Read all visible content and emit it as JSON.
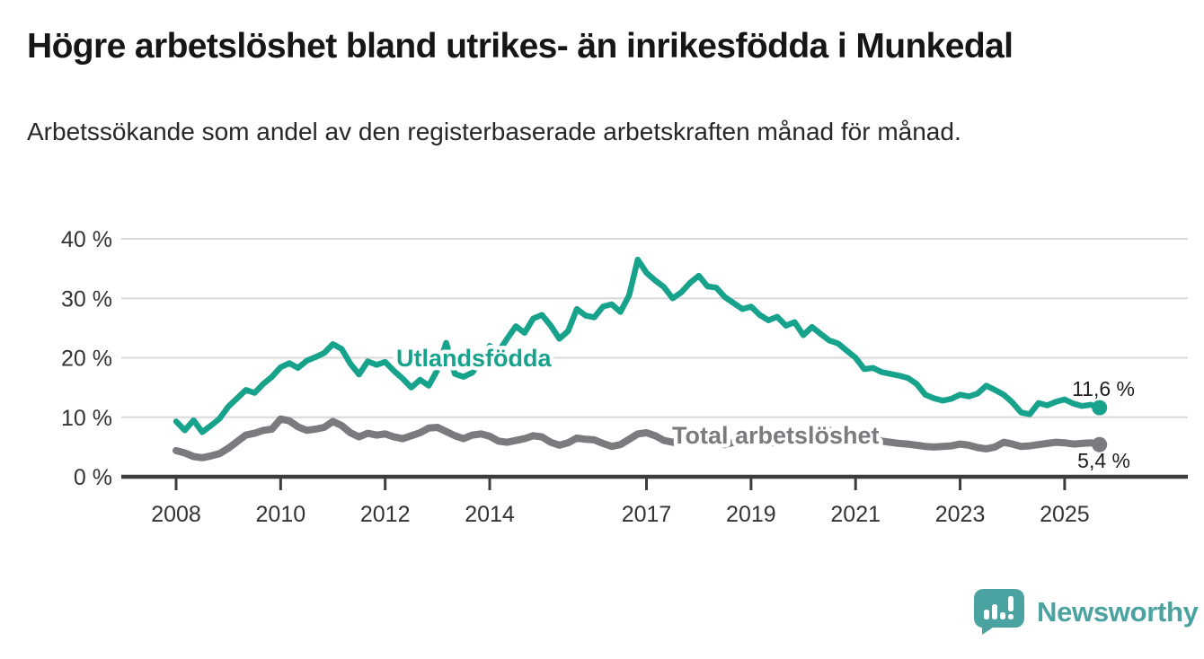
{
  "title": "Högre arbetslöshet bland utrikes- än inrikesfödda i Munkedal",
  "subtitle": "Arbetssökande som andel av den registerbaserade arbetskraften månad för månad.",
  "branding": {
    "logo_text": "Newsworthy",
    "logo_color": "#4aa3a0"
  },
  "colors": {
    "accent_teal": "#17a28c",
    "gray_line": "#7b7b7f",
    "axis": "#3c3c3c",
    "grid": "#d9d9d9",
    "tick_text": "#333333",
    "title_text": "#161616"
  },
  "chart_data": {
    "type": "line",
    "unit": "%",
    "grid": true,
    "legend_position": "inline-labels",
    "ylim": [
      0,
      40
    ],
    "x_start_year": 2008,
    "x_end_year": 2025.667,
    "x_step_years": 0.16667,
    "y_ticks": [
      {
        "value": 0,
        "label": "0 %"
      },
      {
        "value": 10,
        "label": "10 %"
      },
      {
        "value": 20,
        "label": "20 %"
      },
      {
        "value": 30,
        "label": "30 %"
      },
      {
        "value": 40,
        "label": "40 %"
      }
    ],
    "x_ticks": [
      {
        "year": 2008,
        "label": "2008"
      },
      {
        "year": 2010,
        "label": "2010"
      },
      {
        "year": 2012,
        "label": "2012"
      },
      {
        "year": 2014,
        "label": "2014"
      },
      {
        "year": 2017,
        "label": "2017"
      },
      {
        "year": 2019,
        "label": "2019"
      },
      {
        "year": 2021,
        "label": "2021"
      },
      {
        "year": 2023,
        "label": "2023"
      },
      {
        "year": 2025,
        "label": "2025"
      }
    ],
    "series": [
      {
        "name": "Utlandsfödda",
        "color": "#17a28c",
        "end_value": 11.6,
        "end_label": "11,6 %",
        "values": [
          9.3,
          7.8,
          9.5,
          7.5,
          8.6,
          9.8,
          11.8,
          13.2,
          14.6,
          14.1,
          15.6,
          16.8,
          18.4,
          19.1,
          18.3,
          19.5,
          20.1,
          20.8,
          22.3,
          21.5,
          19.0,
          17.2,
          19.4,
          18.8,
          19.3,
          17.8,
          16.5,
          15.0,
          16.3,
          15.3,
          18.0,
          22.5,
          17.3,
          16.8,
          17.5,
          19.5,
          22.0,
          21.0,
          23.2,
          25.3,
          24.2,
          26.6,
          27.2,
          25.4,
          23.2,
          24.5,
          28.2,
          27.1,
          26.8,
          28.6,
          29.0,
          27.7,
          30.5,
          36.5,
          34.3,
          33.0,
          31.9,
          30.0,
          31.0,
          32.6,
          33.8,
          32.0,
          31.8,
          30.2,
          29.2,
          28.2,
          28.6,
          27.2,
          26.3,
          26.9,
          25.4,
          26.0,
          23.8,
          25.2,
          24.0,
          22.9,
          22.4,
          21.2,
          20.0,
          18.1,
          18.3,
          17.6,
          17.3,
          17.0,
          16.6,
          15.6,
          13.8,
          13.2,
          12.8,
          13.1,
          13.8,
          13.5,
          14.0,
          15.3,
          14.6,
          13.8,
          12.5,
          10.8,
          10.5,
          12.4,
          12.0,
          12.6,
          13.0,
          12.3,
          11.9,
          12.1,
          11.6
        ]
      },
      {
        "name": "Total arbetslöshet",
        "color": "#7b7b7f",
        "end_value": 5.4,
        "end_label": "5,4 %",
        "values": [
          4.4,
          4.0,
          3.4,
          3.2,
          3.5,
          3.9,
          4.8,
          5.9,
          7.0,
          7.3,
          7.8,
          8.0,
          9.7,
          9.4,
          8.4,
          7.8,
          8.0,
          8.3,
          9.3,
          8.6,
          7.4,
          6.7,
          7.3,
          7.0,
          7.2,
          6.7,
          6.4,
          6.9,
          7.4,
          8.2,
          8.3,
          7.6,
          6.9,
          6.4,
          7.0,
          7.2,
          6.8,
          6.0,
          5.8,
          6.1,
          6.4,
          6.9,
          6.7,
          5.8,
          5.3,
          5.7,
          6.5,
          6.3,
          6.2,
          5.6,
          5.1,
          5.4,
          6.3,
          7.2,
          7.4,
          6.9,
          6.1,
          5.8,
          6.2,
          6.6,
          6.9,
          6.4,
          5.7,
          5.4,
          5.8,
          6.1,
          6.4,
          6.0,
          5.6,
          5.9,
          6.2,
          6.4,
          6.6,
          7.0,
          7.6,
          7.8,
          7.4,
          7.1,
          7.2,
          6.8,
          6.3,
          6.0,
          5.8,
          5.6,
          5.5,
          5.3,
          5.1,
          5.0,
          5.1,
          5.2,
          5.5,
          5.3,
          4.9,
          4.7,
          5.0,
          5.8,
          5.5,
          5.1,
          5.2,
          5.4,
          5.6,
          5.8,
          5.7,
          5.5,
          5.6,
          5.7,
          5.4
        ]
      }
    ]
  }
}
